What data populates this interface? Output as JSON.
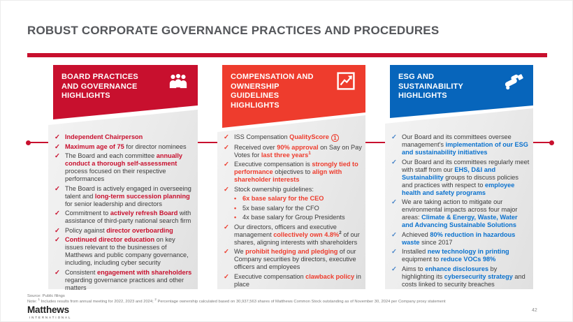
{
  "slide": {
    "title": "ROBUST CORPORATE GOVERNANCE PRACTICES AND PROCEDURES"
  },
  "colors": {
    "crimson": "#C8102E",
    "orange_red": "#EE3C2D",
    "blue": "#0765BB",
    "blue_highlight": "#0B72CE",
    "title_gray": "#54565A",
    "body_text": "#3C3C3C"
  },
  "columns": [
    {
      "id": "board-practices",
      "header_lines": [
        "BOARD PRACTICES",
        "AND GOVERNANCE",
        "HIGHLIGHTS"
      ],
      "header_bg": "#C8102E",
      "icon": "people-icon",
      "check_color": "#C8102E",
      "hl_color": "#C8102E",
      "bullets": [
        {
          "type": "check",
          "parts": [
            {
              "t": "Independent Chairperson",
              "hl": true
            }
          ]
        },
        {
          "type": "check",
          "parts": [
            {
              "t": "Maximum age of 75",
              "hl": true
            },
            {
              "t": " for director nominees"
            }
          ]
        },
        {
          "type": "check",
          "parts": [
            {
              "t": "The Board and each committee "
            },
            {
              "t": "annually conduct a thorough self-assessment",
              "hl": true
            },
            {
              "t": " process focused on their respective performances"
            }
          ]
        },
        {
          "type": "check",
          "parts": [
            {
              "t": "The Board is actively engaged in overseeing talent and "
            },
            {
              "t": "long-term succession planning",
              "hl": true
            },
            {
              "t": " for senior leadership and directors"
            }
          ]
        },
        {
          "type": "check",
          "parts": [
            {
              "t": "Commitment to "
            },
            {
              "t": "actively refresh Board",
              "hl": true
            },
            {
              "t": " with assistance of third-party national search firm"
            }
          ]
        },
        {
          "type": "check",
          "parts": [
            {
              "t": "Policy against "
            },
            {
              "t": "director overboarding",
              "hl": true
            }
          ]
        },
        {
          "type": "check",
          "parts": [
            {
              "t": "Continued director education",
              "hl": true
            },
            {
              "t": " on key issues relevant to the businesses of Matthews and public company governance, including, including cyber security"
            }
          ]
        },
        {
          "type": "check",
          "parts": [
            {
              "t": "Consistent "
            },
            {
              "t": "engagement with shareholders",
              "hl": true
            },
            {
              "t": " regarding governance practices and other matters"
            }
          ]
        }
      ]
    },
    {
      "id": "compensation-ownership",
      "header_lines": [
        "COMPENSATION AND",
        "OWNERSHIP",
        "GUIDELINES",
        "HIGHLIGHTS"
      ],
      "header_bg": "#EE3C2D",
      "icon": "chart-icon",
      "check_color": "#EE3C2D",
      "hl_color": "#EE3C2D",
      "bullets": [
        {
          "type": "check",
          "parts": [
            {
              "t": "ISS Compensation "
            },
            {
              "t": "QualityScore",
              "hl": true
            },
            {
              "circle": "1"
            }
          ]
        },
        {
          "type": "check",
          "parts": [
            {
              "t": "Received over "
            },
            {
              "t": "90% approval",
              "hl": true
            },
            {
              "t": " on Say on Pay Votes for "
            },
            {
              "t": "last three years",
              "hl": true
            },
            {
              "t": "1",
              "sup": true,
              "hl": true
            }
          ]
        },
        {
          "type": "check",
          "parts": [
            {
              "t": "Executive compensation is "
            },
            {
              "t": "strongly tied to performance",
              "hl": true
            },
            {
              "t": " objectives to "
            },
            {
              "t": "align with shareholder interests",
              "hl": true
            }
          ]
        },
        {
          "type": "check",
          "parts": [
            {
              "t": "Stock ownership guidelines:"
            }
          ]
        },
        {
          "type": "sub",
          "parts": [
            {
              "t": "6x base salary for the CEO",
              "hl": true
            }
          ]
        },
        {
          "type": "sub",
          "parts": [
            {
              "t": "5x base salary for the CFO"
            }
          ]
        },
        {
          "type": "sub",
          "parts": [
            {
              "t": "4x base salary for Group Presidents"
            }
          ]
        },
        {
          "type": "check",
          "parts": [
            {
              "t": "Our directors, officers and executive management "
            },
            {
              "t": "collectively own 4.8%",
              "hl": true
            },
            {
              "t": "2",
              "sup": true,
              "b": true
            },
            {
              "t": " of our shares, aligning interests with shareholders"
            }
          ]
        },
        {
          "type": "check",
          "parts": [
            {
              "t": "We "
            },
            {
              "t": "prohibit hedging and pledging",
              "hl": true
            },
            {
              "t": " of our Company securities by directors, executive officers and employees"
            }
          ]
        },
        {
          "type": "check",
          "parts": [
            {
              "t": "Executive compensation "
            },
            {
              "t": "clawback policy",
              "hl": true
            },
            {
              "t": " in place"
            }
          ]
        }
      ]
    },
    {
      "id": "esg-sustainability",
      "header_lines": [
        "ESG AND",
        "SUSTAINABILITY",
        "HIGHLIGHTS"
      ],
      "header_bg": "#0765BB",
      "icon": "handshake-icon",
      "check_color": "#4A86C9",
      "hl_color": "#0B72CE",
      "bullets": [
        {
          "type": "check",
          "parts": [
            {
              "t": "Our Board and its committees oversee management's "
            },
            {
              "t": "implementation of our ESG and sustainability initiatives",
              "hl": true
            }
          ]
        },
        {
          "type": "check",
          "parts": [
            {
              "t": "Our Board and its committees regularly meet with staff from our "
            },
            {
              "t": "EHS, D&I and Sustainability",
              "hl": true
            },
            {
              "t": " groups to discuss policies and practices with respect to "
            },
            {
              "t": "employee health and safety programs",
              "hl": true
            }
          ]
        },
        {
          "type": "check",
          "parts": [
            {
              "t": "We are taking action to mitigate our environmental impacts across four major areas: "
            },
            {
              "t": "Climate & Energy, Waste, Water and Advancing Sustainable Solutions",
              "hl": true
            }
          ]
        },
        {
          "type": "check",
          "parts": [
            {
              "t": "Achieved "
            },
            {
              "t": "80% reduction in hazardous waste",
              "hl": true
            },
            {
              "t": " since 2017"
            }
          ]
        },
        {
          "type": "check",
          "parts": [
            {
              "t": "Installed "
            },
            {
              "t": "new technology in printing",
              "hl": true
            },
            {
              "t": " equipment to "
            },
            {
              "t": "reduce VOCs 98%",
              "hl": true
            }
          ]
        },
        {
          "type": "check",
          "parts": [
            {
              "t": "Aims to "
            },
            {
              "t": "enhance disclosures",
              "hl": true
            },
            {
              "t": " by highlighting its "
            },
            {
              "t": "cybersecurity strategy",
              "hl": true
            },
            {
              "t": " and costs linked to security breaches"
            }
          ]
        }
      ]
    }
  ],
  "footer": {
    "source": "Source: Public filings",
    "note_parts": [
      {
        "t": "Note: "
      },
      {
        "t": "1",
        "sup": true
      },
      {
        "t": " Includes results from annual meeting for 2022, 2023 and 2024; "
      },
      {
        "t": "2",
        "sup": true
      },
      {
        "t": " Percentage ownership calculated based on 30,937,563 shares of Matthews Common Stock outstanding as of November 30, 2024 per Company proxy statement"
      }
    ],
    "logo_name": "Matthews",
    "logo_sub": "INTERNATIONAL",
    "page_number": "42"
  }
}
